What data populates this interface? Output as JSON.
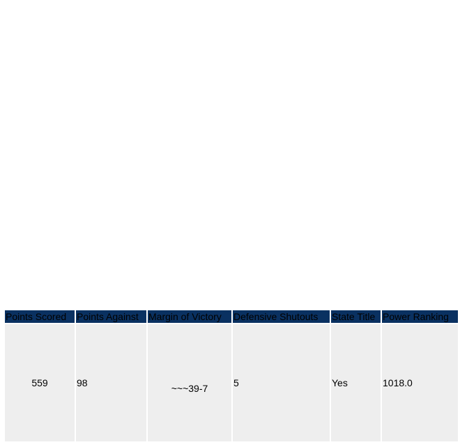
{
  "table": {
    "headers": [
      "Points Scored",
      "Points Against",
      "Margin of Victory",
      "Defensive Shutouts",
      "State Title",
      "Power Ranking"
    ],
    "row": [
      "559",
      "98",
      "~~~39-7",
      "5",
      "Yes",
      "1018.0"
    ]
  },
  "colors": {
    "header_bg": "#0a3161",
    "cell_bg": "#eeeeee"
  }
}
